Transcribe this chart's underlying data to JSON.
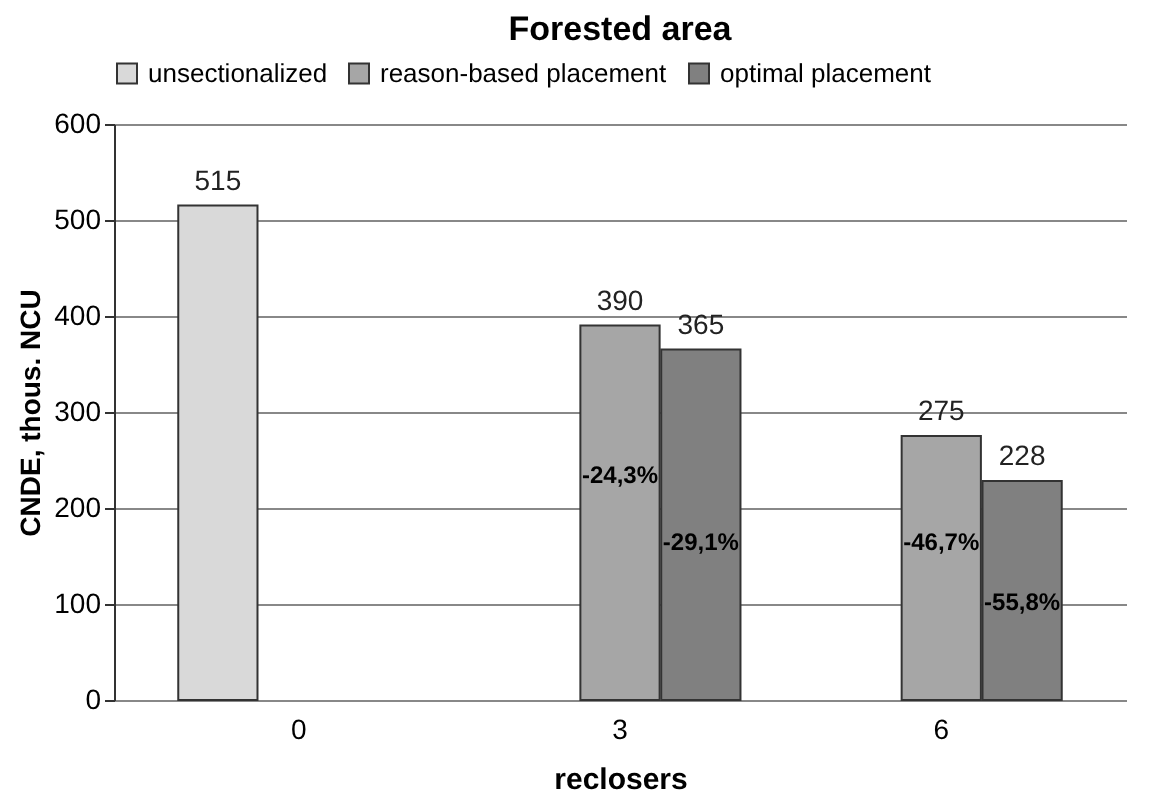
{
  "chart_data": {
    "type": "bar",
    "title": "Forested area",
    "xlabel": "reclosers",
    "ylabel": "CNDE, thous. NCU",
    "categories": [
      "0",
      "3",
      "6"
    ],
    "series": [
      {
        "name": "unsectionalized",
        "color": "#d9d9d9",
        "values": [
          515,
          null,
          null
        ]
      },
      {
        "name": "reason-based placement",
        "color": "#a6a6a6",
        "values": [
          null,
          390,
          275
        ]
      },
      {
        "name": "optimal placement",
        "color": "#808080",
        "values": [
          null,
          365,
          228
        ]
      }
    ],
    "ylim": [
      0,
      600
    ],
    "yticks": [
      0,
      100,
      200,
      300,
      400,
      500,
      600
    ],
    "grid": "y",
    "legend": "top",
    "data_labels": true,
    "annotations": [
      "-24,3%",
      "-29,1%",
      "-46,7%",
      "-55,8%"
    ]
  }
}
